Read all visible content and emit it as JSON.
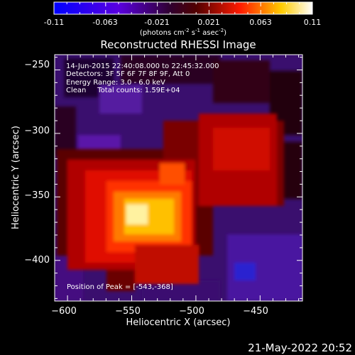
{
  "colorbar": {
    "tick_labels": [
      "-0.11",
      "-0.063",
      "-0.021",
      "0.021",
      "0.063",
      "0.11"
    ],
    "units_text": "(photons cm",
    "units_exp1": "-2",
    "units_mid1": " s",
    "units_exp2": "-1",
    "units_mid2": " asec",
    "units_exp3": "-2",
    "units_close": ")",
    "colors": [
      "#0000ff",
      "#6a00ff",
      "#ff0000",
      "#ffff00",
      "#ffffff"
    ]
  },
  "plot": {
    "title": "Reconstructed RHESSI Image",
    "info_lines": [
      "14-Jun-2015 22:40:08.000 to 22:45:32.000",
      "Detectors: 3F 5F 6F 7F 8F 9F, Att 0",
      "Energy Range: 3.0 - 6.0 keV",
      "Clean     Total counts: 1.59E+04"
    ],
    "peak_text": "Position of Peak = [-543,-368]"
  },
  "chart_data": {
    "type": "heatmap",
    "title": "Reconstructed RHESSI Image",
    "xlabel": "Heliocentric X (arcsec)",
    "ylabel": "Heliocentric Y (arcsec)",
    "xlim": [
      -610,
      -417
    ],
    "ylim": [
      -432,
      -238
    ],
    "x_ticks": [
      -600,
      -550,
      -500,
      -450
    ],
    "y_ticks": [
      -250,
      -300,
      -350,
      -400
    ],
    "x_tick_labels": [
      "−600",
      "−550",
      "−500",
      "−450"
    ],
    "y_tick_labels": [
      "−250",
      "−300",
      "−350",
      "−400"
    ],
    "value_range": [
      -0.11,
      0.11
    ],
    "peak_position": [
      -543,
      -368
    ]
  },
  "footer": {
    "timestamp": "21-May-2022 20:52"
  }
}
